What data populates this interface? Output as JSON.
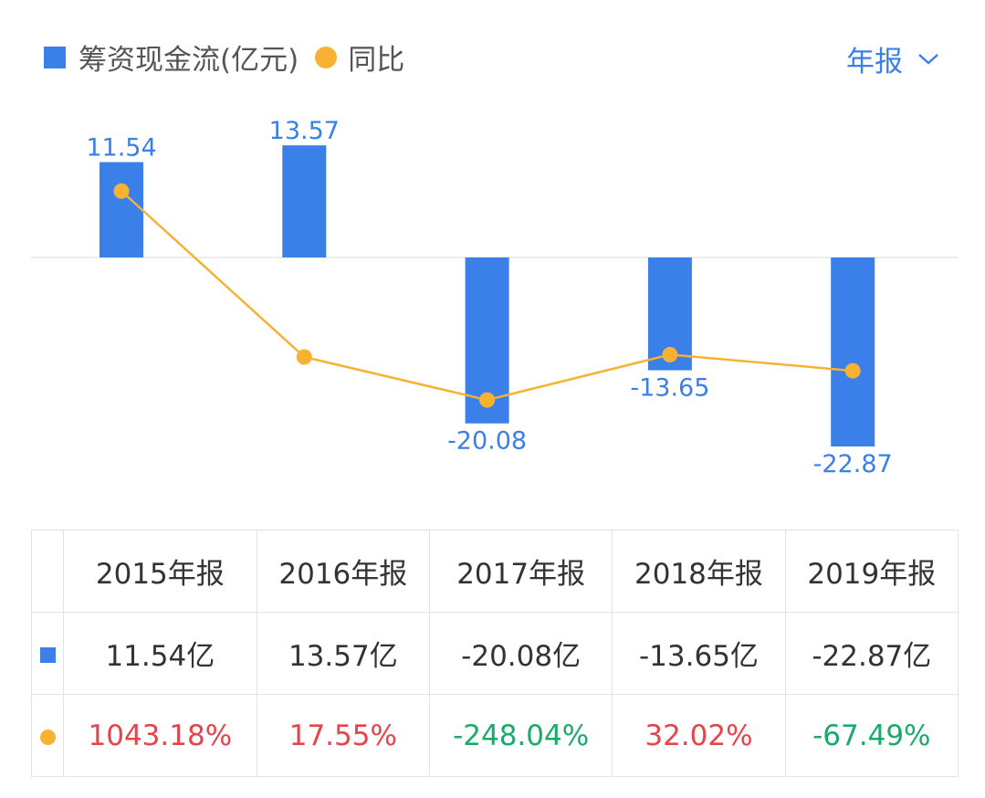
{
  "legend": {
    "bar_label": "筹资现金流(亿元)",
    "line_label": "同比"
  },
  "period_selector": {
    "label": "年报",
    "icon": "chevron-down-icon"
  },
  "colors": {
    "bar": "#3b7fe8",
    "line": "#f7b233",
    "positive": "#e5444a",
    "negative": "#1aab6a"
  },
  "chart_data": {
    "type": "bar+line",
    "categories": [
      "2015年报",
      "2016年报",
      "2017年报",
      "2018年报",
      "2019年报"
    ],
    "series": [
      {
        "name": "筹资现金流(亿元)",
        "type": "bar",
        "values": [
          11.54,
          13.57,
          -20.08,
          -13.65,
          -22.87
        ],
        "labels": [
          "11.54",
          "13.57",
          "-20.08",
          "-13.65",
          "-22.87"
        ]
      },
      {
        "name": "同比",
        "type": "line",
        "values": [
          1043.18,
          17.55,
          -248.04,
          32.02,
          -67.49
        ]
      }
    ],
    "grid": false,
    "legend_position": "top-left"
  },
  "table": {
    "headers": [
      "2015年报",
      "2016年报",
      "2017年报",
      "2018年报",
      "2019年报"
    ],
    "bar_row": [
      "11.54亿",
      "13.57亿",
      "-20.08亿",
      "-13.65亿",
      "-22.87亿"
    ],
    "yoy_row": [
      "1043.18%",
      "17.55%",
      "-248.04%",
      "32.02%",
      "-67.49%"
    ]
  }
}
